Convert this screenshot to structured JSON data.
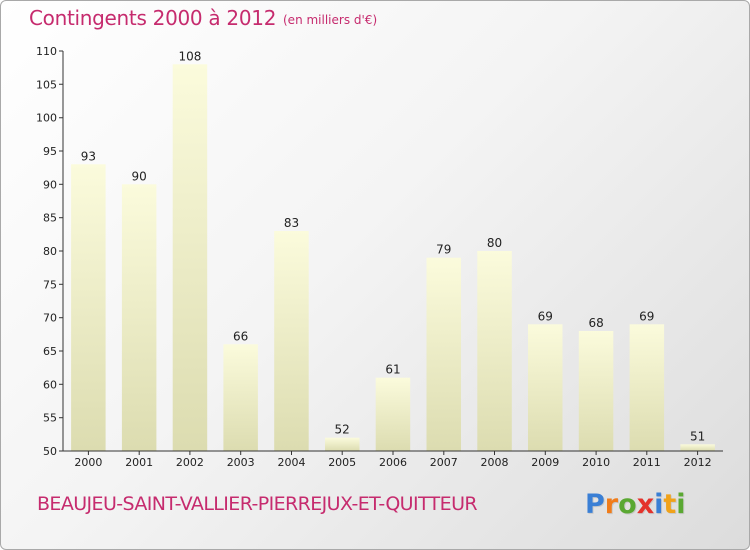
{
  "header": {
    "title": "Contingents 2000 à 2012",
    "subtitle": "(en milliers d'€)"
  },
  "footer": {
    "commune": "BEAUJEU-SAINT-VALLIER-PIERREJUX-ET-QUITTEUR",
    "brand_letters": [
      "P",
      "r",
      "o",
      "x",
      "i",
      "t",
      "i"
    ],
    "brand_colors": [
      "#3a7fd5",
      "#f07c1a",
      "#5aa832",
      "#e4322b",
      "#3a7fd5",
      "#f0a21a",
      "#5aa832"
    ]
  },
  "colors": {
    "bar_light": "#fbfbdc",
    "bar_dark": "#dcdcb0",
    "axis": "#333333",
    "tick_text": "#222222",
    "title": "#c62b6e"
  },
  "chart_data": {
    "type": "bar",
    "title": "Contingents 2000 à 2012",
    "subtitle": "(en milliers d'€)",
    "categories": [
      "2000",
      "2001",
      "2002",
      "2003",
      "2004",
      "2005",
      "2006",
      "2007",
      "2008",
      "2009",
      "2010",
      "2011",
      "2012"
    ],
    "values": [
      93,
      90,
      108,
      66,
      83,
      52,
      61,
      79,
      80,
      69,
      68,
      69,
      51
    ],
    "ylim": [
      50,
      110
    ],
    "yticks": [
      50,
      55,
      60,
      65,
      70,
      75,
      80,
      85,
      90,
      95,
      100,
      105,
      110
    ],
    "xlabel": "",
    "ylabel": "",
    "grid": false,
    "legend": "none",
    "data_labels": true
  }
}
